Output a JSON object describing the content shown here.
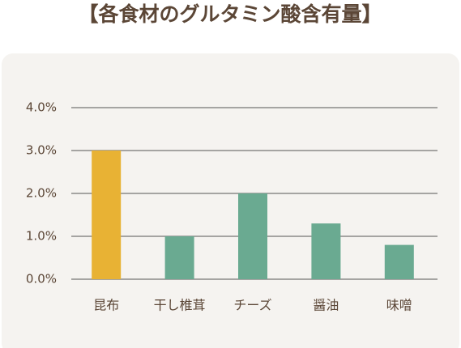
{
  "chart_data": {
    "type": "bar",
    "title": "【各食材のグルタミン酸含有量】",
    "categories": [
      "昆布",
      "干し椎茸",
      "チーズ",
      "醤油",
      "味噌"
    ],
    "values": [
      3.0,
      1.0,
      2.0,
      1.3,
      0.8
    ],
    "colors": [
      "#e8b234",
      "#6aaa91",
      "#6aaa91",
      "#6aaa91",
      "#6aaa91"
    ],
    "ylim": [
      0,
      4
    ],
    "yticks": [
      {
        "value": 0,
        "label": "0.0%"
      },
      {
        "value": 1,
        "label": "1.0%"
      },
      {
        "value": 2,
        "label": "2.0%"
      },
      {
        "value": 3,
        "label": "3.0%"
      },
      {
        "value": 4,
        "label": "4.0%"
      }
    ],
    "grid": true
  }
}
